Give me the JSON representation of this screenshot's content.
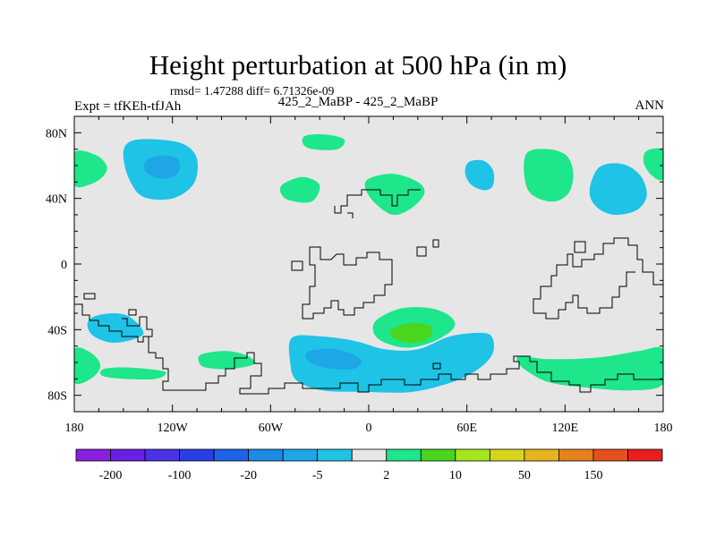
{
  "chart_data": {
    "type": "heatmap",
    "title": "Height perturbation at 500 hPa (in m)",
    "stats_text": "rmsd= 1.47288 diff= 6.71326e-09",
    "left_label": "Expt = tfKEh-tfJAh",
    "center_label": "425_2_MaBP - 425_2_MaBP",
    "right_label": "ANN",
    "xlim": [
      -180,
      180
    ],
    "ylim": [
      -90,
      90
    ],
    "x_ticks": [
      {
        "value": -180,
        "label": "180"
      },
      {
        "value": -120,
        "label": "120W"
      },
      {
        "value": -60,
        "label": "60W"
      },
      {
        "value": 0,
        "label": "0"
      },
      {
        "value": 60,
        "label": "60E"
      },
      {
        "value": 120,
        "label": "120E"
      },
      {
        "value": 180,
        "label": "180"
      }
    ],
    "y_ticks": [
      {
        "value": 80,
        "label": "80N"
      },
      {
        "value": 40,
        "label": "40N"
      },
      {
        "value": 0,
        "label": "0"
      },
      {
        "value": -40,
        "label": "40S"
      },
      {
        "value": -80,
        "label": "80S"
      }
    ],
    "background_color": "#e6e6e6",
    "colorbar": {
      "colors": [
        "#8a1ee0",
        "#6a1ee6",
        "#4a32e6",
        "#2a3ee6",
        "#1e64e6",
        "#1e8ae6",
        "#1ea6e6",
        "#1ec3e6",
        "#e6e6e6",
        "#1ee68a",
        "#4ad61e",
        "#a6e61e",
        "#d6d61e",
        "#e6b41e",
        "#e6821e",
        "#e6501e",
        "#e61e1e"
      ],
      "labels": [
        {
          "boundary": 1,
          "text": "-200"
        },
        {
          "boundary": 3,
          "text": "-100"
        },
        {
          "boundary": 5,
          "text": "-20"
        },
        {
          "boundary": 7,
          "text": "-5"
        },
        {
          "boundary": 9,
          "text": "2"
        },
        {
          "boundary": 11,
          "text": "10"
        },
        {
          "boundary": 13,
          "text": "50"
        },
        {
          "boundary": 15,
          "text": "150"
        }
      ]
    },
    "regions": [
      {
        "level": "-5",
        "color": "#1ec3e6",
        "points": [
          [
            -145,
            75
          ],
          [
            -130,
            76
          ],
          [
            -113,
            73
          ],
          [
            -105,
            64
          ],
          [
            -107,
            49
          ],
          [
            -120,
            40
          ],
          [
            -138,
            41
          ],
          [
            -147,
            53
          ],
          [
            -150,
            68
          ]
        ]
      },
      {
        "level": "-10",
        "color": "#1ea6e6",
        "points": [
          [
            -135,
            64
          ],
          [
            -124,
            66
          ],
          [
            -116,
            63
          ],
          [
            -117,
            55
          ],
          [
            -127,
            52
          ],
          [
            -137,
            57
          ]
        ]
      },
      {
        "level": "2",
        "color": "#1ee68a",
        "points": [
          [
            -180,
            68
          ],
          [
            -166,
            66
          ],
          [
            -160,
            58
          ],
          [
            -167,
            50
          ],
          [
            -180,
            48
          ]
        ]
      },
      {
        "level": "2",
        "color": "#1ee68a",
        "points": [
          [
            -39,
            78
          ],
          [
            -27,
            79
          ],
          [
            -15,
            76
          ],
          [
            -19,
            70
          ],
          [
            -34,
            70
          ],
          [
            -40,
            73
          ]
        ]
      },
      {
        "level": "2",
        "color": "#1ee68a",
        "points": [
          [
            -52,
            49
          ],
          [
            -40,
            53
          ],
          [
            -30,
            48
          ],
          [
            -35,
            38
          ],
          [
            -49,
            39
          ],
          [
            -54,
            44
          ]
        ]
      },
      {
        "level": "2",
        "color": "#1ee68a",
        "points": [
          [
            0,
            52
          ],
          [
            15,
            55
          ],
          [
            30,
            50
          ],
          [
            34,
            43
          ],
          [
            26,
            34
          ],
          [
            15,
            30
          ],
          [
            4,
            37
          ],
          [
            -2,
            46
          ]
        ]
      },
      {
        "level": "-5",
        "color": "#1ec3e6",
        "points": [
          [
            61,
            62
          ],
          [
            70,
            63
          ],
          [
            76,
            57
          ],
          [
            76,
            48
          ],
          [
            71,
            45
          ],
          [
            63,
            48
          ],
          [
            59,
            55
          ]
        ]
      },
      {
        "level": "2",
        "color": "#1ee68a",
        "points": [
          [
            97,
            68
          ],
          [
            110,
            70
          ],
          [
            121,
            66
          ],
          [
            125,
            55
          ],
          [
            122,
            43
          ],
          [
            112,
            38
          ],
          [
            99,
            43
          ],
          [
            95,
            55
          ]
        ]
      },
      {
        "level": "-5",
        "color": "#1ec3e6",
        "points": [
          [
            141,
            59
          ],
          [
            155,
            61
          ],
          [
            166,
            54
          ],
          [
            170,
            42
          ],
          [
            164,
            33
          ],
          [
            150,
            30
          ],
          [
            139,
            35
          ],
          [
            135,
            45
          ]
        ]
      },
      {
        "level": "2",
        "color": "#1ee68a",
        "points": [
          [
            170,
            69
          ],
          [
            180,
            69
          ],
          [
            180,
            52
          ],
          [
            173,
            54
          ],
          [
            168,
            62
          ]
        ]
      },
      {
        "level": "-5",
        "color": "#1ec3e6",
        "points": [
          [
            -168,
            -32
          ],
          [
            -155,
            -30
          ],
          [
            -145,
            -33
          ],
          [
            -138,
            -43
          ],
          [
            -155,
            -48
          ],
          [
            -168,
            -44
          ],
          [
            -172,
            -37
          ]
        ]
      },
      {
        "level": "2",
        "color": "#1ee68a",
        "points": [
          [
            -180,
            -52
          ],
          [
            -170,
            -54
          ],
          [
            -164,
            -62
          ],
          [
            -170,
            -70
          ],
          [
            -180,
            -72
          ]
        ]
      },
      {
        "level": "2",
        "color": "#1ee68a",
        "points": [
          [
            -162,
            -64
          ],
          [
            -150,
            -63
          ],
          [
            -135,
            -64
          ],
          [
            -124,
            -66
          ],
          [
            -130,
            -70
          ],
          [
            -150,
            -70
          ],
          [
            -163,
            -68
          ]
        ]
      },
      {
        "level": "2",
        "color": "#1ee68a",
        "points": [
          [
            -102,
            -55
          ],
          [
            -87,
            -53
          ],
          [
            -74,
            -56
          ],
          [
            -70,
            -61
          ],
          [
            -85,
            -64
          ],
          [
            -100,
            -63
          ],
          [
            -104,
            -59
          ]
        ]
      },
      {
        "level": "-5",
        "color": "#1ec3e6",
        "points": [
          [
            -47,
            -45
          ],
          [
            -30,
            -44
          ],
          [
            -8,
            -47
          ],
          [
            10,
            -52
          ],
          [
            30,
            -52
          ],
          [
            50,
            -44
          ],
          [
            70,
            -42
          ],
          [
            76,
            -46
          ],
          [
            75,
            -56
          ],
          [
            64,
            -66
          ],
          [
            48,
            -73
          ],
          [
            26,
            -78
          ],
          [
            0,
            -78
          ],
          [
            -28,
            -77
          ],
          [
            -44,
            -71
          ],
          [
            -48,
            -60
          ]
        ]
      },
      {
        "level": "-10",
        "color": "#1ea6e6",
        "points": [
          [
            -36,
            -53
          ],
          [
            -20,
            -52
          ],
          [
            -5,
            -58
          ],
          [
            -10,
            -64
          ],
          [
            -28,
            -63
          ],
          [
            -38,
            -58
          ]
        ]
      },
      {
        "level": "2",
        "color": "#1ee68a",
        "points": [
          [
            5,
            -34
          ],
          [
            20,
            -27
          ],
          [
            38,
            -27
          ],
          [
            50,
            -32
          ],
          [
            52,
            -39
          ],
          [
            40,
            -47
          ],
          [
            24,
            -51
          ],
          [
            10,
            -48
          ],
          [
            3,
            -42
          ]
        ]
      },
      {
        "level": "5",
        "color": "#4ad61e",
        "points": [
          [
            14,
            -40
          ],
          [
            26,
            -36
          ],
          [
            38,
            -38
          ],
          [
            37,
            -45
          ],
          [
            26,
            -48
          ],
          [
            15,
            -45
          ]
        ]
      },
      {
        "level": "2",
        "color": "#1ee68a",
        "points": [
          [
            92,
            -56
          ],
          [
            110,
            -58
          ],
          [
            140,
            -57
          ],
          [
            165,
            -53
          ],
          [
            180,
            -52
          ],
          [
            180,
            -73
          ],
          [
            160,
            -77
          ],
          [
            130,
            -75
          ],
          [
            110,
            -72
          ],
          [
            98,
            -66
          ],
          [
            92,
            -61
          ]
        ]
      }
    ]
  }
}
